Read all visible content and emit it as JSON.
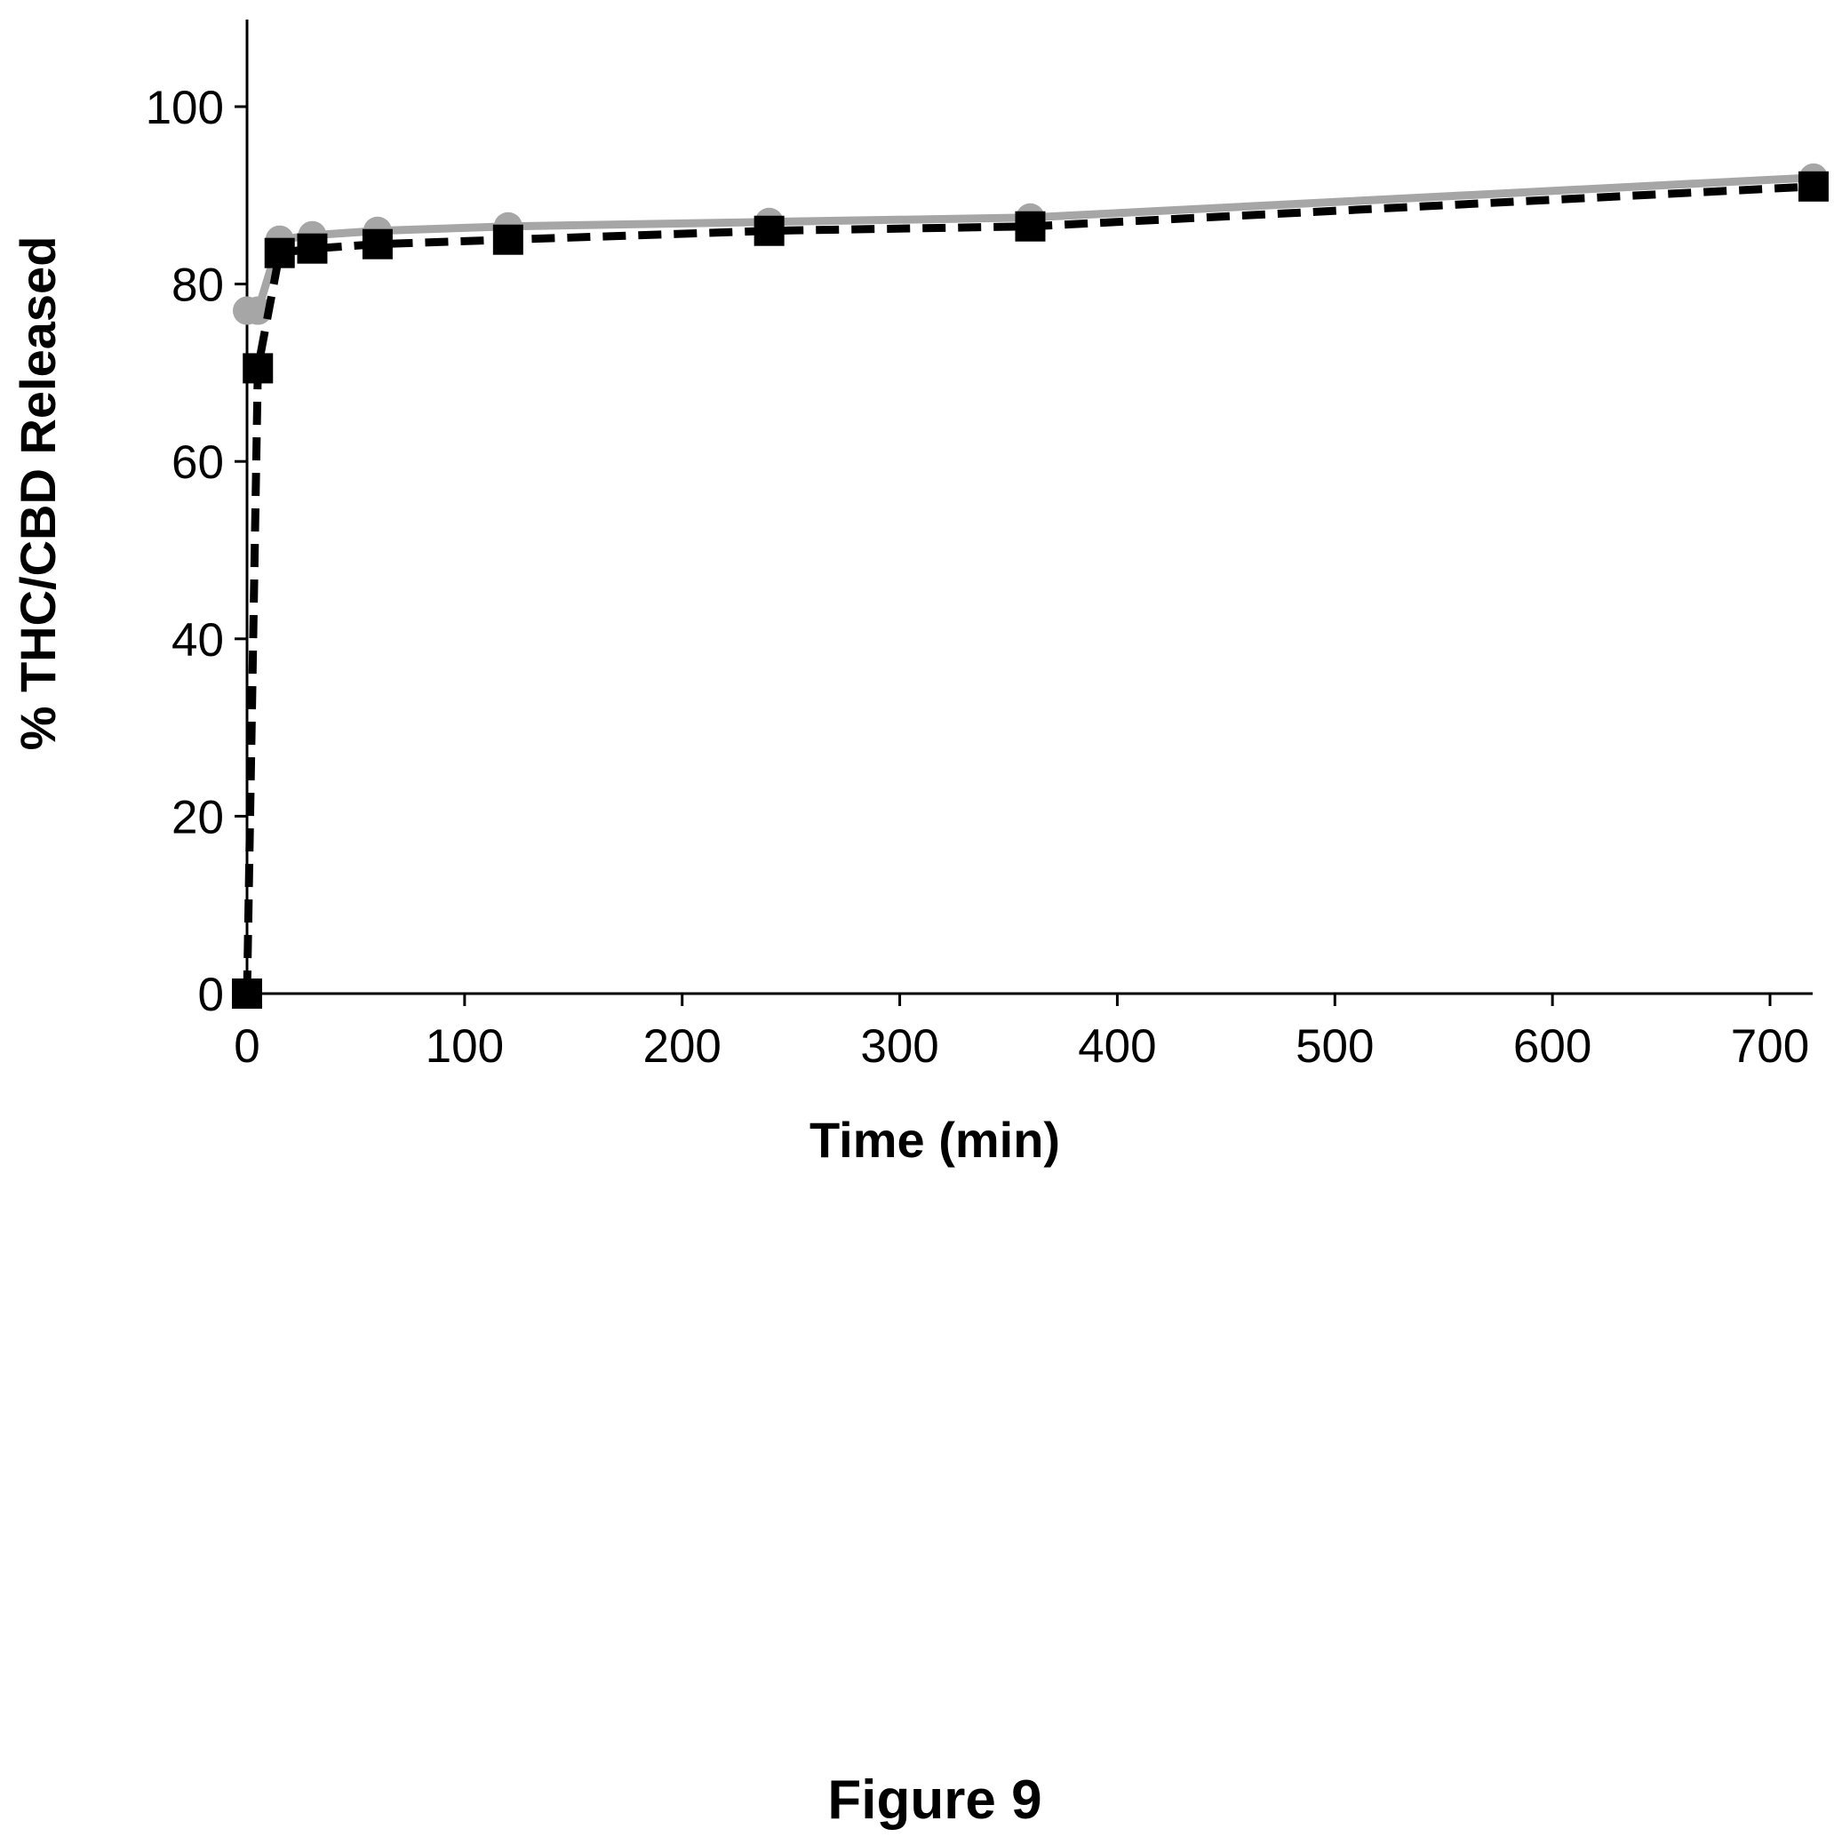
{
  "figure_caption": "Figure 9",
  "chart_data": {
    "type": "line",
    "title": "",
    "xlabel": "Time (min)",
    "ylabel": "% THC/CBD Released",
    "xlim": [
      0,
      720
    ],
    "ylim": [
      0,
      110
    ],
    "xticks": [
      0,
      100,
      200,
      300,
      400,
      500,
      600,
      700
    ],
    "yticks": [
      0,
      20,
      40,
      60,
      80,
      100
    ],
    "grid": false,
    "legend": "none",
    "series": [
      {
        "marker": "circle",
        "line_style": "solid",
        "color": "#a6a6a6",
        "x": [
          0,
          5,
          15,
          30,
          60,
          120,
          240,
          360,
          720
        ],
        "y": [
          77,
          77,
          85,
          85.5,
          86,
          86.5,
          87,
          87.5,
          92
        ]
      },
      {
        "marker": "square",
        "line_style": "dashed",
        "color": "#000000",
        "x": [
          0,
          5,
          15,
          30,
          60,
          120,
          240,
          360,
          720
        ],
        "y": [
          0,
          70.5,
          83.5,
          84,
          84.5,
          85,
          86,
          86.5,
          91
        ]
      }
    ]
  }
}
